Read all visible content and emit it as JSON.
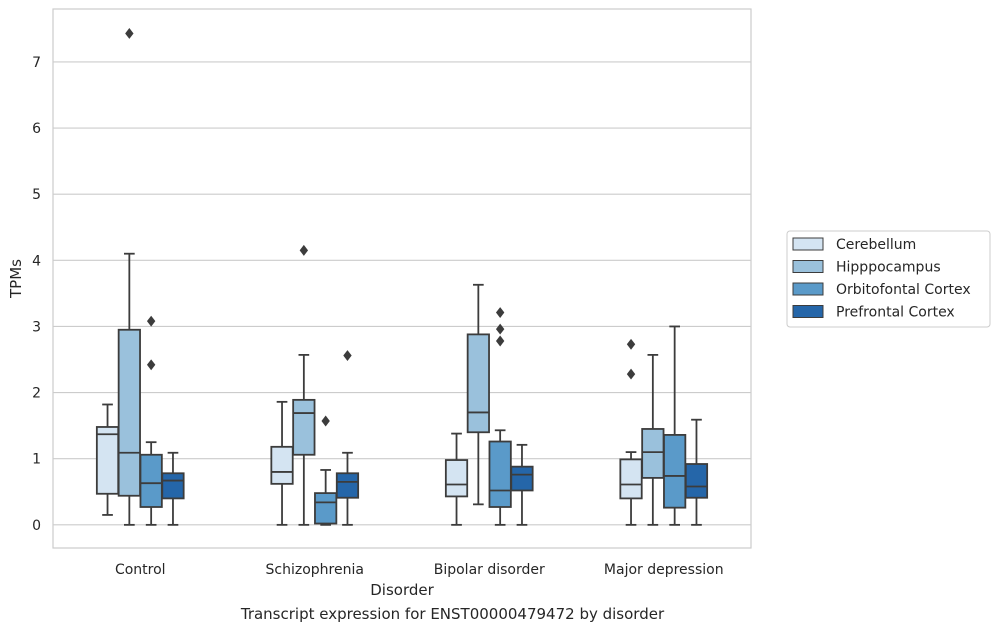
{
  "caption": "Transcript expression for ENST00000479472 by disorder",
  "chart_data": {
    "type": "box",
    "xlabel": "Disorder",
    "ylabel": "TPMs",
    "ylim": [
      -0.35,
      7.8
    ],
    "yticks": [
      0,
      1,
      2,
      3,
      4,
      5,
      6,
      7
    ],
    "grid": "horizontal",
    "legend_position": "right",
    "categories": [
      "Control",
      "Schizophrenia",
      "Bipolar disorder",
      "Major depression"
    ],
    "series": [
      {
        "name": "Cerebellum",
        "color": "#d4e4f2",
        "boxes": [
          {
            "whislo": 0.15,
            "q1": 0.47,
            "med": 1.37,
            "q3": 1.48,
            "whishi": 1.82,
            "fliers": []
          },
          {
            "whislo": 0.0,
            "q1": 0.62,
            "med": 0.8,
            "q3": 1.18,
            "whishi": 1.86,
            "fliers": []
          },
          {
            "whislo": 0.0,
            "q1": 0.43,
            "med": 0.61,
            "q3": 0.98,
            "whishi": 1.38,
            "fliers": []
          },
          {
            "whislo": 0.0,
            "q1": 0.4,
            "med": 0.61,
            "q3": 0.99,
            "whishi": 1.1,
            "fliers": [
              2.28,
              2.73
            ]
          }
        ]
      },
      {
        "name": "Hipppocampus",
        "color": "#9ac1dc",
        "boxes": [
          {
            "whislo": 0.0,
            "q1": 0.44,
            "med": 1.09,
            "q3": 2.95,
            "whishi": 4.1,
            "fliers": [
              7.43
            ]
          },
          {
            "whislo": 0.0,
            "q1": 1.06,
            "med": 1.69,
            "q3": 1.89,
            "whishi": 2.57,
            "fliers": [
              4.15
            ]
          },
          {
            "whislo": 0.31,
            "q1": 1.4,
            "med": 1.7,
            "q3": 2.88,
            "whishi": 3.63,
            "fliers": []
          },
          {
            "whislo": 0.0,
            "q1": 0.71,
            "med": 1.1,
            "q3": 1.45,
            "whishi": 2.57,
            "fliers": []
          }
        ]
      },
      {
        "name": "Orbitofontal Cortex",
        "color": "#5a9ac9",
        "boxes": [
          {
            "whislo": 0.0,
            "q1": 0.27,
            "med": 0.63,
            "q3": 1.06,
            "whishi": 1.25,
            "fliers": [
              2.42,
              3.08
            ]
          },
          {
            "whislo": 0.0,
            "q1": 0.02,
            "med": 0.34,
            "q3": 0.48,
            "whishi": 0.83,
            "fliers": [
              1.57
            ]
          },
          {
            "whislo": 0.0,
            "q1": 0.27,
            "med": 0.52,
            "q3": 1.26,
            "whishi": 1.43,
            "fliers": [
              2.78,
              2.96,
              3.21
            ]
          },
          {
            "whislo": 0.0,
            "q1": 0.26,
            "med": 0.74,
            "q3": 1.36,
            "whishi": 3.0,
            "fliers": []
          }
        ]
      },
      {
        "name": "Prefrontal Cortex",
        "color": "#2566a9",
        "boxes": [
          {
            "whislo": 0.0,
            "q1": 0.4,
            "med": 0.67,
            "q3": 0.78,
            "whishi": 1.09,
            "fliers": []
          },
          {
            "whislo": 0.0,
            "q1": 0.41,
            "med": 0.65,
            "q3": 0.78,
            "whishi": 1.09,
            "fliers": [
              2.56
            ]
          },
          {
            "whislo": 0.0,
            "q1": 0.52,
            "med": 0.76,
            "q3": 0.88,
            "whishi": 1.21,
            "fliers": []
          },
          {
            "whislo": 0.0,
            "q1": 0.41,
            "med": 0.58,
            "q3": 0.92,
            "whishi": 1.59,
            "fliers": []
          }
        ]
      }
    ]
  }
}
